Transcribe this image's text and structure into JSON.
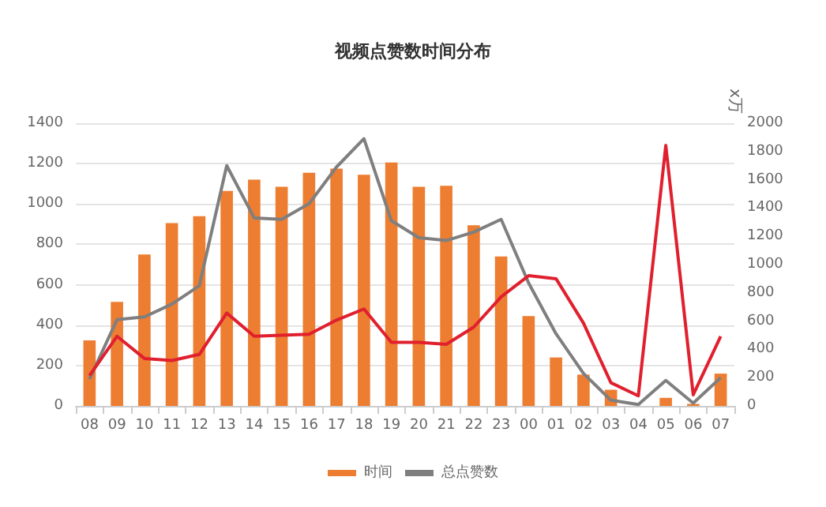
{
  "chart_data": {
    "type": "bar",
    "title": "视频点赞数时间分布",
    "y2label": "x万",
    "categories": [
      "08",
      "09",
      "10",
      "11",
      "12",
      "13",
      "14",
      "15",
      "16",
      "17",
      "18",
      "19",
      "20",
      "21",
      "22",
      "23",
      "00",
      "01",
      "02",
      "03",
      "04",
      "05",
      "06",
      "07"
    ],
    "series": [
      {
        "name": "时间",
        "color": "#ed7d31",
        "values": [
          325,
          515,
          750,
          905,
          940,
          1065,
          1120,
          1085,
          1155,
          1175,
          1145,
          1205,
          1085,
          1090,
          895,
          740,
          445,
          240,
          155,
          80,
          null,
          40,
          10,
          160
        ]
      },
      {
        "name": "总点赞数",
        "type": "line",
        "axis": "y2",
        "color": "#7f7f7f",
        "values": [
          190,
          610,
          630,
          720,
          850,
          1700,
          1330,
          1320,
          1430,
          1690,
          1890,
          1310,
          1190,
          1170,
          1230,
          1320,
          870,
          510,
          230,
          40,
          10,
          180,
          20,
          200
        ]
      },
      {
        "type": "line",
        "color": "#e0202e",
        "values": [
          150,
          345,
          235,
          225,
          255,
          460,
          345,
          350,
          355,
          425,
          480,
          315,
          315,
          305,
          390,
          540,
          645,
          630,
          410,
          115,
          50,
          1290,
          55,
          345
        ]
      }
    ],
    "ylim": [
      0,
      1400
    ],
    "yticks": [
      0,
      200,
      400,
      600,
      800,
      1000,
      1200,
      1400
    ],
    "y2lim": [
      0,
      2000
    ],
    "y2ticks": [
      0,
      200,
      400,
      600,
      800,
      1000,
      1200,
      1400,
      1600,
      1800,
      2000
    ],
    "grid": "y",
    "legend": "bottom",
    "marker": "none"
  }
}
